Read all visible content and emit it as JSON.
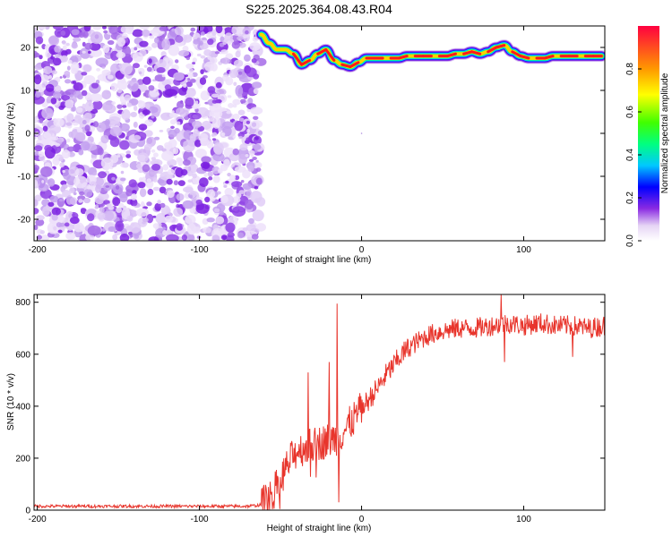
{
  "title": "S225.2025.364.08.43.R04",
  "chart_data": [
    {
      "type": "heatmap",
      "xlabel": "Height of straight line (km)",
      "ylabel": "Frequency (Hz)",
      "xlim": [
        -202,
        150
      ],
      "ylim": [
        -25,
        25
      ],
      "xticks": [
        -200,
        -100,
        0,
        100
      ],
      "yticks": [
        -20,
        -10,
        0,
        10,
        20
      ],
      "noise_region_x": [
        -202,
        -62
      ],
      "ridge_x": [
        -62,
        -57,
        -52,
        -47,
        -42,
        -37,
        -32,
        -27,
        -22,
        -17,
        -12,
        -7,
        -2,
        3,
        8,
        13,
        18,
        23,
        28,
        33,
        38,
        43,
        48,
        53,
        58,
        63,
        68,
        73,
        78,
        83,
        88,
        93,
        98,
        103,
        108,
        113,
        118,
        123,
        128,
        133,
        138,
        143,
        148
      ],
      "ridge_freq": [
        23,
        21,
        19.5,
        19.5,
        18.5,
        16,
        17,
        18.5,
        19.5,
        17,
        16,
        15.5,
        16.5,
        17.5,
        17.5,
        17.5,
        17.5,
        17.5,
        18,
        18,
        18,
        18,
        18,
        18,
        18.5,
        18.5,
        19,
        18.5,
        19,
        20,
        20.5,
        19,
        18,
        17.5,
        17.5,
        17.5,
        18,
        18,
        18,
        18,
        18,
        18,
        18
      ],
      "colorbar": {
        "label": "Normalized spectral amplitude",
        "ticks": [
          0.0,
          0.2,
          0.4,
          0.6,
          0.8
        ],
        "range": [
          0,
          1
        ]
      }
    },
    {
      "type": "line",
      "xlabel": "Height of straight line (km)",
      "ylabel": "SNR (10 * v/v)",
      "xlim": [
        -202,
        150
      ],
      "ylim": [
        0,
        830
      ],
      "xticks": [
        -200,
        -100,
        0,
        100
      ],
      "yticks": [
        0,
        200,
        400,
        600,
        800
      ],
      "series_color": "#e8352c",
      "trend_x": [
        -202,
        -150,
        -100,
        -70,
        -62,
        -55,
        -50,
        -45,
        -40,
        -35,
        -30,
        -25,
        -20,
        -15,
        -10,
        -5,
        0,
        5,
        10,
        15,
        20,
        25,
        30,
        35,
        40,
        50,
        60,
        70,
        80,
        90,
        100,
        110,
        120,
        130,
        140,
        150
      ],
      "trend_y": [
        15,
        15,
        15,
        15,
        20,
        60,
        120,
        180,
        230,
        240,
        250,
        260,
        270,
        280,
        310,
        350,
        390,
        430,
        470,
        520,
        560,
        600,
        630,
        650,
        670,
        690,
        700,
        700,
        710,
        720,
        710,
        720,
        710,
        710,
        700,
        710
      ],
      "spikes": [
        {
          "x": -15,
          "y": 795
        },
        {
          "x": -14,
          "y": 30
        },
        {
          "x": -33,
          "y": 530
        },
        {
          "x": -20,
          "y": 570
        },
        {
          "x": 86,
          "y": 830
        },
        {
          "x": 88,
          "y": 570
        },
        {
          "x": 130,
          "y": 590
        }
      ]
    }
  ]
}
